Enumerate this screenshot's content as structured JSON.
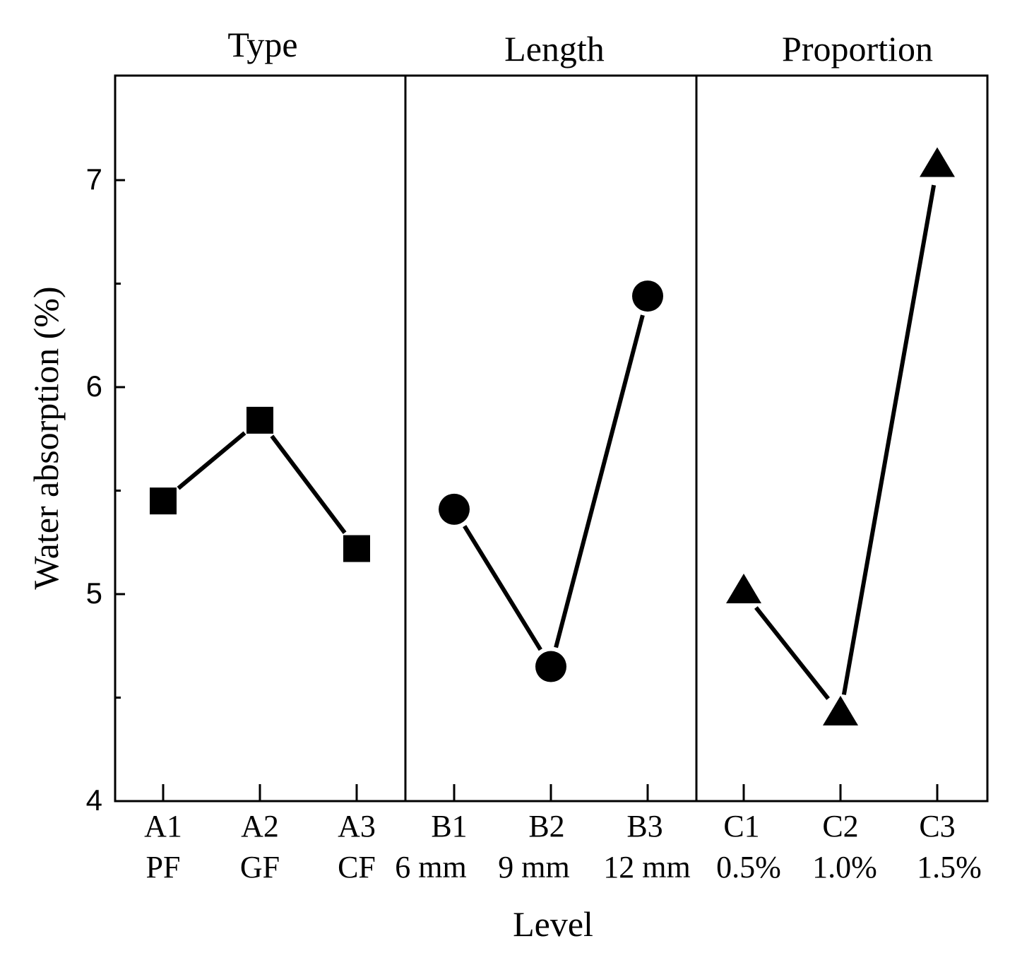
{
  "chart_data": {
    "type": "line",
    "ylabel": "Water absorption (%)",
    "xlabel": "Level",
    "ylim": [
      4,
      7.5
    ],
    "yticks": [
      4,
      5,
      6,
      7
    ],
    "yticks_display": [
      "4",
      "5",
      "6",
      "7"
    ],
    "ygrid": false,
    "panels": [
      {
        "title": "Type",
        "marker": "square",
        "levels": [
          {
            "code": "A1",
            "name": "PF",
            "value": 5.45
          },
          {
            "code": "A2",
            "name": "GF",
            "value": 5.84
          },
          {
            "code": "A3",
            "name": "CF",
            "value": 5.22
          }
        ]
      },
      {
        "title": "Length",
        "marker": "circle",
        "levels": [
          {
            "code": "B1",
            "name": "6 mm",
            "value": 5.41
          },
          {
            "code": "B2",
            "name": "9 mm",
            "value": 4.65
          },
          {
            "code": "B3",
            "name": "12 mm",
            "value": 6.44
          }
        ]
      },
      {
        "title": "Proportion",
        "marker": "triangle",
        "levels": [
          {
            "code": "C1",
            "name": "0.5%",
            "value": 5.01
          },
          {
            "code": "C2",
            "name": "1.0%",
            "value": 4.42
          },
          {
            "code": "C3",
            "name": "1.5%",
            "value": 7.07
          }
        ]
      }
    ]
  }
}
